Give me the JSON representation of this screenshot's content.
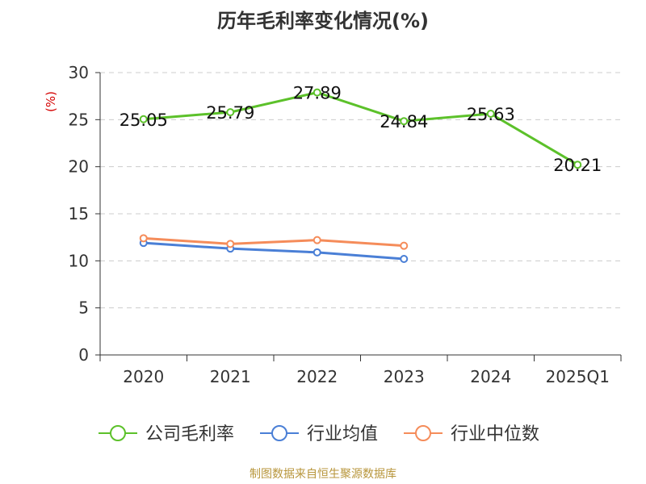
{
  "chart_data": {
    "type": "line",
    "title": "历年毛利率变化情况(%)",
    "ylabel": "(%)",
    "xlabel": "",
    "categories": [
      "2020",
      "2021",
      "2022",
      "2023",
      "2024",
      "2025Q1"
    ],
    "ylim": [
      0,
      30
    ],
    "yticks": [
      0,
      5,
      10,
      15,
      20,
      25,
      30
    ],
    "grid": true,
    "legend_position": "bottom",
    "series": [
      {
        "name": "公司毛利率",
        "color": "#5cc12a",
        "values": [
          25.05,
          25.79,
          27.89,
          24.84,
          25.63,
          20.21
        ],
        "labels": [
          "25.05",
          "25.79",
          "27.89",
          "24.84",
          "25.63",
          "20.21"
        ]
      },
      {
        "name": "行业均值",
        "color": "#4a7fd6",
        "values": [
          11.9,
          11.3,
          10.9,
          10.2,
          null,
          null
        ]
      },
      {
        "name": "行业中位数",
        "color": "#f58c5a",
        "values": [
          12.4,
          11.8,
          12.2,
          11.6,
          null,
          null
        ]
      }
    ]
  },
  "colors": {
    "axis": "#333333",
    "grid": "#cccccc",
    "ylabel": "#d40000"
  },
  "footer": {
    "source": "制图数据来自恒生聚源数据库"
  }
}
